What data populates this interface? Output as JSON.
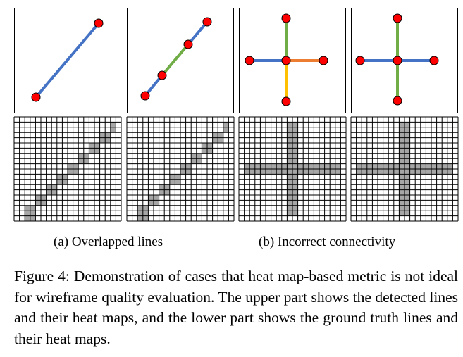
{
  "figure": {
    "colors": {
      "line_blue": "#4472c4",
      "line_green": "#70ad47",
      "line_orange": "#ed7d31",
      "line_yellow": "#ffc000",
      "endpoint_red": "#ff0000",
      "cell_filled": "#a6a6a6",
      "grid": "#000000"
    },
    "panels": [
      {
        "name": "overlap-single",
        "detected_segments": [
          "blue"
        ],
        "endpoint_count": 2
      },
      {
        "name": "overlap-split",
        "detected_segments": [
          "blue",
          "green",
          "blue"
        ],
        "endpoint_count": 4
      },
      {
        "name": "connectivity-four",
        "detected_segments": [
          "blue",
          "orange",
          "green",
          "yellow"
        ],
        "endpoint_count": 5
      },
      {
        "name": "connectivity-two",
        "detected_segments": [
          "blue",
          "green"
        ],
        "endpoint_count": 5
      }
    ]
  },
  "subcaptions": {
    "a": "(a) Overlapped lines",
    "b": "(b) Incorrect connectivity"
  },
  "caption": {
    "label": "Figure 4:",
    "text": "Demonstration of cases that heat map-based metric is not ideal for wireframe quality evaluation. The upper part shows the detected lines and their heat maps, and the lower part shows the ground truth lines and their heat maps."
  }
}
